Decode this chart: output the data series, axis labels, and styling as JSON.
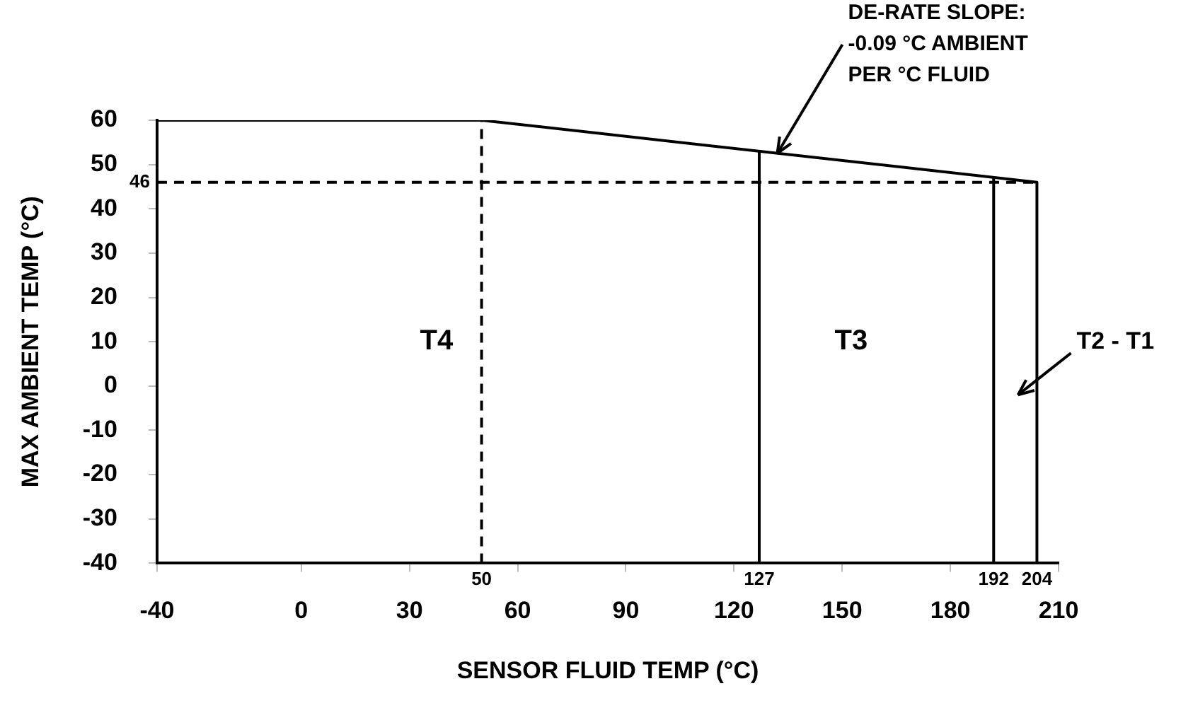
{
  "chart_data": {
    "type": "line",
    "xlabel": "SENSOR FLUID TEMP (°C)",
    "ylabel": "MAX AMBIENT TEMP (°C)",
    "series": [
      {
        "color": "#000000",
        "x": [
          -40,
          50,
          204,
          204
        ],
        "values": [
          60,
          60,
          46,
          -40
        ]
      },
      {
        "color": "#000000",
        "x": [
          127,
          127
        ],
        "values": [
          -40,
          53
        ]
      },
      {
        "color": "#000000",
        "x": [
          192,
          192
        ],
        "values": [
          -40,
          47
        ]
      },
      {
        "color": "#000000",
        "x": [
          50,
          50
        ],
        "values": [
          -40,
          60
        ],
        "line_style": "dashed"
      },
      {
        "color": "#000000",
        "x": [
          -40,
          204
        ],
        "values": [
          46,
          46
        ],
        "line_style": "dashed"
      }
    ],
    "xlim": [
      -40,
      210
    ],
    "xticks": [
      -40,
      0,
      30,
      60,
      90,
      120,
      150,
      180,
      210
    ],
    "ylim": [
      -40,
      60
    ],
    "yticks": [
      -40,
      -30,
      -20,
      -10,
      0,
      10,
      20,
      30,
      40,
      50,
      60
    ],
    "annotations": [
      "T4",
      "T3",
      "T2 - T1",
      {
        "text": "DE-RATE SLOPE:\n-0.09 °C AMBIENT\nPER °C FLUID",
        "x": 132,
        "y": 52.5
      },
      {
        "text": "50",
        "x": 50,
        "y": -40
      },
      {
        "text": "127",
        "x": 127,
        "y": -40
      },
      {
        "text": "192",
        "x": 192,
        "y": -40
      },
      {
        "text": "204",
        "x": 204,
        "y": -40
      },
      {
        "text": "46",
        "x": -40,
        "y": 46
      }
    ]
  }
}
